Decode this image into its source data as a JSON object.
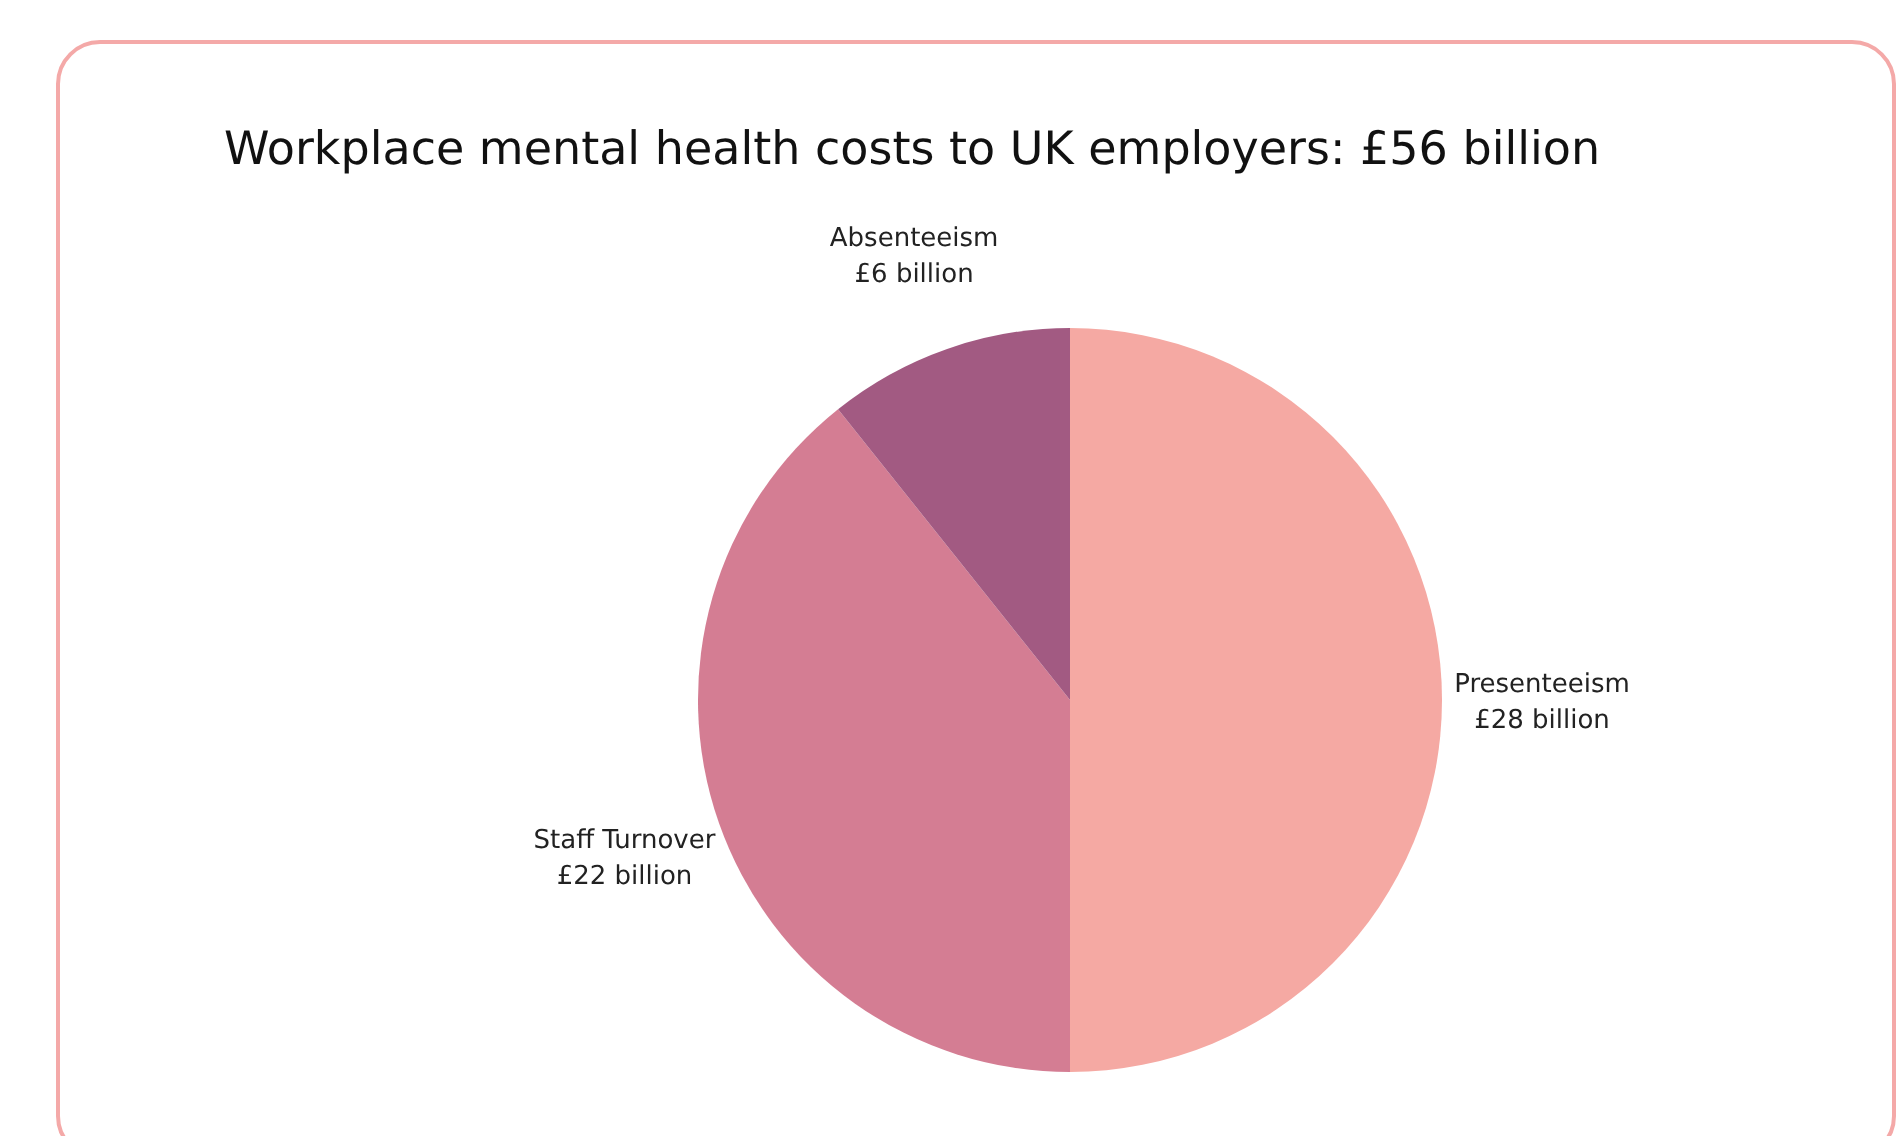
{
  "chart_data": {
    "type": "pie",
    "title": "Workplace mental health costs to UK employers: £56 billion",
    "categories": [
      "Presenteeism",
      "Staff Turnover",
      "Absenteeism"
    ],
    "values": [
      28,
      22,
      6
    ],
    "value_labels": [
      "£28 billion",
      "£22 billion",
      "£6 billion"
    ],
    "colors": [
      "#f5a9a3",
      "#d47d93",
      "#a25a82"
    ],
    "legend": false
  }
}
